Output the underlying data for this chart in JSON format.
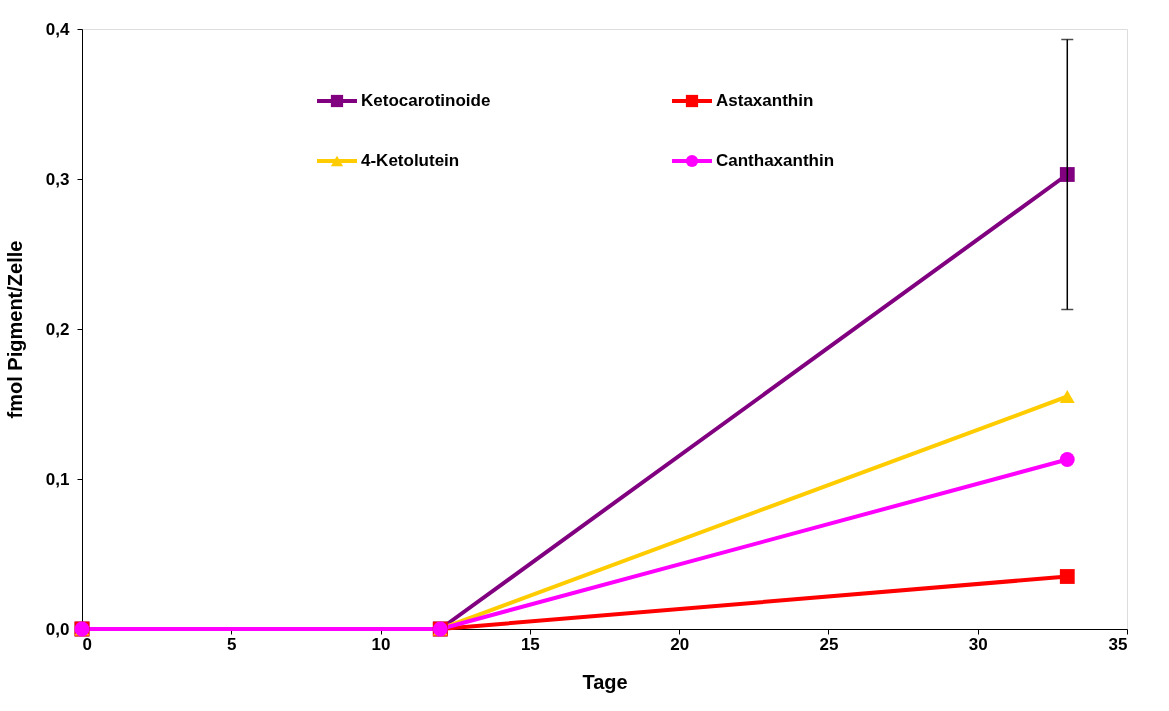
{
  "chart_data": {
    "type": "line",
    "xlabel": "Tage",
    "ylabel": "fmol Pigment/Zelle",
    "xlim": [
      0,
      35
    ],
    "xticks": [
      0,
      5,
      10,
      15,
      20,
      25,
      30,
      35
    ],
    "ylim": [
      0,
      0.4
    ],
    "yticks": [
      {
        "value": 0,
        "label": "0,0"
      },
      {
        "value": 0.1,
        "label": "0,1"
      },
      {
        "value": 0.2,
        "label": "0,2"
      },
      {
        "value": 0.3,
        "label": "0,3"
      },
      {
        "value": 0.4,
        "label": "0,4"
      }
    ],
    "grid": false,
    "legend": "top",
    "line_style": "solid",
    "series": [
      {
        "name": "Ketocarotinoide",
        "color": "#800080",
        "marker": "square",
        "x": [
          0,
          12,
          33
        ],
        "values": [
          0,
          0,
          0.303
        ],
        "errors": [
          null,
          null,
          0.09
        ]
      },
      {
        "name": "Astaxanthin",
        "color": "#ff0000",
        "marker": "square",
        "x": [
          0,
          12,
          33
        ],
        "values": [
          0,
          0,
          0.035
        ]
      },
      {
        "name": "4-Ketolutein",
        "color": "#ffcc00",
        "marker": "triangle",
        "x": [
          0,
          12,
          33
        ],
        "values": [
          0,
          0,
          0.155
        ]
      },
      {
        "name": "Canthaxanthin",
        "color": "#ff00ff",
        "marker": "circle",
        "x": [
          0,
          12,
          33
        ],
        "values": [
          0,
          0,
          0.113
        ]
      }
    ]
  }
}
